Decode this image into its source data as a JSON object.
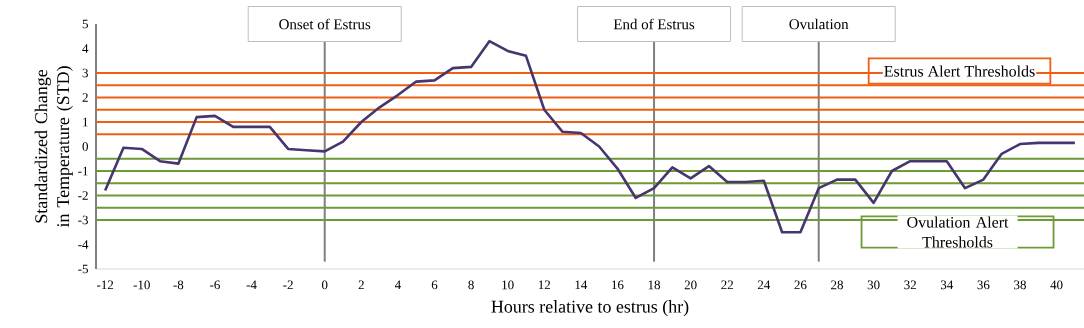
{
  "chart_data": {
    "type": "line",
    "xlabel": "Hours relative to estrus (hr)",
    "ylabel": "Standardized Change in Temperature (STD)",
    "x": [
      -12,
      -11,
      -10,
      -9,
      -8,
      -7,
      -6,
      -5,
      -4,
      -3,
      -2,
      -1,
      0,
      1,
      2,
      3,
      4,
      5,
      6,
      7,
      8,
      9,
      10,
      11,
      12,
      13,
      14,
      15,
      16,
      17,
      18,
      19,
      20,
      21,
      22,
      23,
      24,
      25,
      26,
      27,
      28,
      29,
      30,
      31,
      32,
      33,
      34,
      35,
      36,
      37,
      38,
      39,
      40,
      41
    ],
    "series": [
      {
        "color": "#47366e",
        "values": [
          -1.8,
          -0.05,
          -0.1,
          -0.6,
          -0.7,
          1.2,
          1.25,
          0.8,
          0.8,
          0.8,
          -0.1,
          -0.15,
          -0.2,
          0.2,
          1.0,
          1.6,
          2.1,
          2.65,
          2.7,
          3.2,
          3.25,
          4.3,
          3.9,
          3.7,
          1.5,
          0.6,
          0.55,
          0.0,
          -0.9,
          -2.1,
          -1.7,
          -0.85,
          -1.3,
          -0.8,
          -1.45,
          -1.45,
          -1.4,
          -3.5,
          -3.5,
          -1.7,
          -1.35,
          -1.35,
          -2.3,
          -1.0,
          -0.6,
          -0.6,
          -0.6,
          -1.7,
          -1.35,
          -0.3,
          0.1,
          0.15,
          0.15,
          0.15
        ]
      }
    ],
    "xlim": [
      -12.5,
      41.5
    ],
    "ylim": [
      -5,
      5
    ],
    "xticks": [
      -12,
      -10,
      -8,
      -6,
      -4,
      -2,
      0,
      2,
      4,
      6,
      8,
      10,
      12,
      14,
      16,
      18,
      20,
      22,
      24,
      26,
      28,
      30,
      32,
      34,
      36,
      38,
      40
    ],
    "yticks": [
      -5,
      -4,
      -3,
      -2,
      -1,
      0,
      1,
      2,
      3,
      4,
      5
    ],
    "grid": false,
    "marker": "none",
    "line_style": "solid",
    "ref_lines": [
      {
        "axis": "x",
        "value": 0,
        "label": "Onset of Estrus",
        "color": "#7f7f7f"
      },
      {
        "axis": "x",
        "value": 18,
        "label": "End of Estrus",
        "color": "#7f7f7f"
      },
      {
        "axis": "x",
        "value": 27,
        "label": "Ovulation",
        "color": "#7f7f7f"
      },
      {
        "axis": "y",
        "value": 3,
        "color": "#ee5f11"
      },
      {
        "axis": "y",
        "value": 2.5,
        "color": "#ee5f11"
      },
      {
        "axis": "y",
        "value": 2,
        "color": "#ee5f11"
      },
      {
        "axis": "y",
        "value": 1.5,
        "color": "#ee5f11"
      },
      {
        "axis": "y",
        "value": 1,
        "color": "#ee5f11"
      },
      {
        "axis": "y",
        "value": 0.5,
        "color": "#ee5f11"
      },
      {
        "axis": "y",
        "value": -0.5,
        "color": "#6e9a35"
      },
      {
        "axis": "y",
        "value": -1,
        "color": "#6e9a35"
      },
      {
        "axis": "y",
        "value": -1.5,
        "color": "#6e9a35"
      },
      {
        "axis": "y",
        "value": -2,
        "color": "#6e9a35"
      },
      {
        "axis": "y",
        "value": -2.5,
        "color": "#6e9a35"
      },
      {
        "axis": "y",
        "value": -3,
        "color": "#6e9a35"
      }
    ],
    "annotations": [
      "Estrus Alert Thresholds",
      "Ovulation Alert Thresholds"
    ]
  }
}
